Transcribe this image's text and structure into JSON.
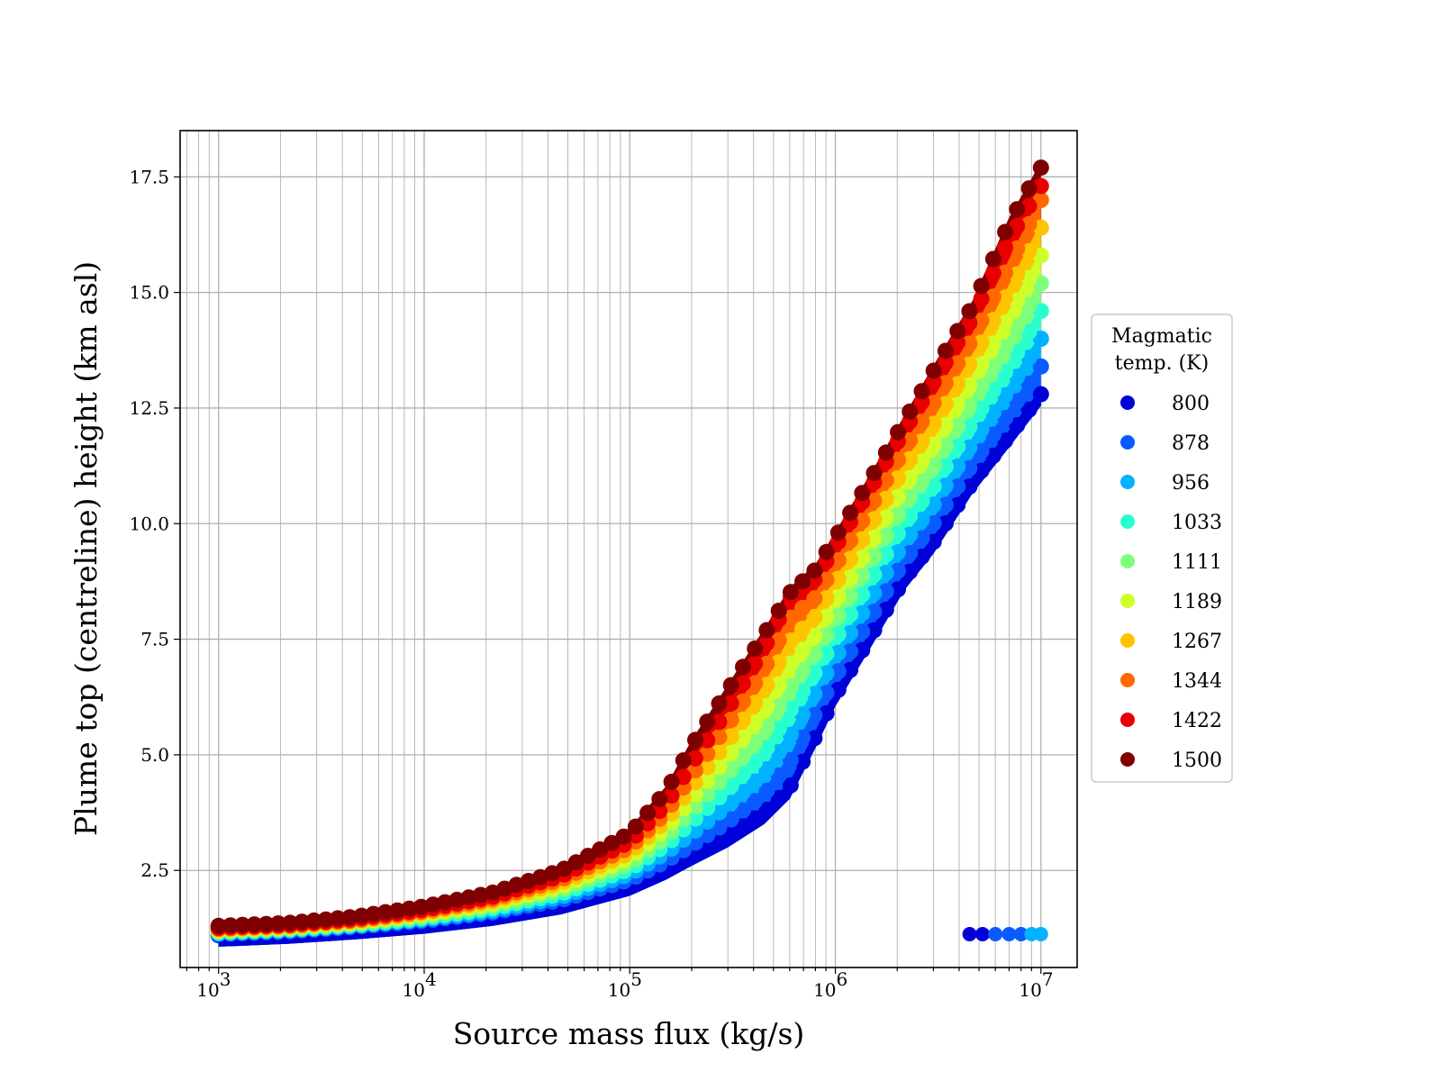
{
  "chart_data": {
    "type": "scatter",
    "title": "",
    "xlabel": "Source mass flux (kg/s)",
    "ylabel": "Plume top (centreline) height (km asl)",
    "xscale": "log",
    "xlim": [
      650,
      15000000
    ],
    "ylim": [
      0.4,
      18.5
    ],
    "grid": true,
    "x_ticks": [
      {
        "value": 1000,
        "base": "10",
        "exp": "3"
      },
      {
        "value": 10000,
        "base": "10",
        "exp": "4"
      },
      {
        "value": 100000,
        "base": "10",
        "exp": "5"
      },
      {
        "value": 1000000,
        "base": "10",
        "exp": "6"
      },
      {
        "value": 10000000,
        "base": "10",
        "exp": "7"
      }
    ],
    "y_ticks": [
      {
        "value": 2.5,
        "label": "2.5"
      },
      {
        "value": 5.0,
        "label": "5.0"
      },
      {
        "value": 7.5,
        "label": "7.5"
      },
      {
        "value": 10.0,
        "label": "10.0"
      },
      {
        "value": 12.5,
        "label": "12.5"
      },
      {
        "value": 15.0,
        "label": "15.0"
      },
      {
        "value": 17.5,
        "label": "17.5"
      }
    ],
    "legend": {
      "title_lines": [
        "Magmatic",
        "temp. (K)"
      ],
      "placement": "outside-right"
    },
    "x_samples": [
      1000,
      2154,
      4642,
      10000,
      21544,
      46416,
      100000,
      150000,
      200000,
      300000,
      450000,
      600000,
      800000,
      1000000,
      1500000,
      2154000,
      3000000,
      4642000,
      7000000,
      10000000
    ],
    "series": [
      {
        "name": "800",
        "color": "#0000d8",
        "y": [
          1.1,
          1.16,
          1.26,
          1.38,
          1.55,
          1.8,
          2.2,
          2.55,
          2.85,
          3.25,
          3.75,
          4.3,
          5.4,
          6.3,
          7.6,
          8.8,
          9.6,
          10.9,
          11.9,
          12.8
        ]
      },
      {
        "name": "878",
        "color": "#0a5bff",
        "y": [
          1.12,
          1.18,
          1.28,
          1.41,
          1.59,
          1.86,
          2.3,
          2.7,
          3.05,
          3.55,
          4.15,
          4.85,
          5.9,
          6.7,
          8.0,
          9.2,
          10.0,
          11.3,
          12.4,
          13.4
        ]
      },
      {
        "name": "956",
        "color": "#00b2ff",
        "y": [
          1.14,
          1.2,
          1.3,
          1.44,
          1.63,
          1.93,
          2.42,
          2.88,
          3.3,
          3.9,
          4.6,
          5.4,
          6.35,
          7.1,
          8.4,
          9.6,
          10.4,
          11.75,
          12.9,
          14.0
        ]
      },
      {
        "name": "1033",
        "color": "#29ffce",
        "y": [
          1.16,
          1.22,
          1.32,
          1.47,
          1.68,
          2.0,
          2.53,
          3.05,
          3.55,
          4.25,
          5.05,
          5.95,
          6.8,
          7.5,
          8.8,
          10.0,
          10.8,
          12.2,
          13.4,
          14.6
        ]
      },
      {
        "name": "1111",
        "color": "#7dff7a",
        "y": [
          1.18,
          1.24,
          1.35,
          1.51,
          1.73,
          2.08,
          2.65,
          3.22,
          3.8,
          4.6,
          5.5,
          6.45,
          7.2,
          7.9,
          9.2,
          10.4,
          11.25,
          12.65,
          13.95,
          15.2
        ]
      },
      {
        "name": "1189",
        "color": "#ceff29",
        "y": [
          1.2,
          1.26,
          1.37,
          1.54,
          1.78,
          2.15,
          2.77,
          3.4,
          4.05,
          4.95,
          5.95,
          6.95,
          7.6,
          8.3,
          9.6,
          10.8,
          11.7,
          13.1,
          14.5,
          15.8
        ]
      },
      {
        "name": "1267",
        "color": "#ffc400",
        "y": [
          1.22,
          1.28,
          1.4,
          1.58,
          1.83,
          2.23,
          2.88,
          3.58,
          4.3,
          5.3,
          6.4,
          7.45,
          8.0,
          8.7,
          10.0,
          11.2,
          12.15,
          13.55,
          15.05,
          16.4
        ]
      },
      {
        "name": "1344",
        "color": "#ff6800",
        "y": [
          1.24,
          1.3,
          1.42,
          1.61,
          1.88,
          2.3,
          3.0,
          3.75,
          4.55,
          5.65,
          6.85,
          7.95,
          8.4,
          9.1,
          10.4,
          11.6,
          12.6,
          14.0,
          15.6,
          17.0
        ]
      },
      {
        "name": "1422",
        "color": "#e80000",
        "y": [
          1.26,
          1.32,
          1.45,
          1.65,
          1.93,
          2.38,
          3.12,
          3.93,
          4.8,
          6.0,
          7.3,
          8.4,
          8.8,
          9.5,
          10.8,
          12.0,
          13.05,
          14.45,
          16.15,
          17.3
        ]
      },
      {
        "name": "1500",
        "color": "#7f0000",
        "y": [
          1.3,
          1.36,
          1.5,
          1.72,
          2.02,
          2.5,
          3.3,
          4.2,
          5.2,
          6.4,
          7.6,
          8.5,
          9.0,
          9.7,
          11.0,
          12.2,
          13.3,
          14.7,
          16.5,
          17.7
        ]
      }
    ],
    "low_branch": {
      "x": [
        4500000,
        5200000,
        6000000,
        7000000,
        8000000,
        9000000,
        10000000
      ],
      "y": 1.12,
      "colors": [
        "#0000d8",
        "#0000d8",
        "#0a5bff",
        "#0a5bff",
        "#0a5bff",
        "#00b2ff",
        "#00b2ff"
      ]
    }
  }
}
